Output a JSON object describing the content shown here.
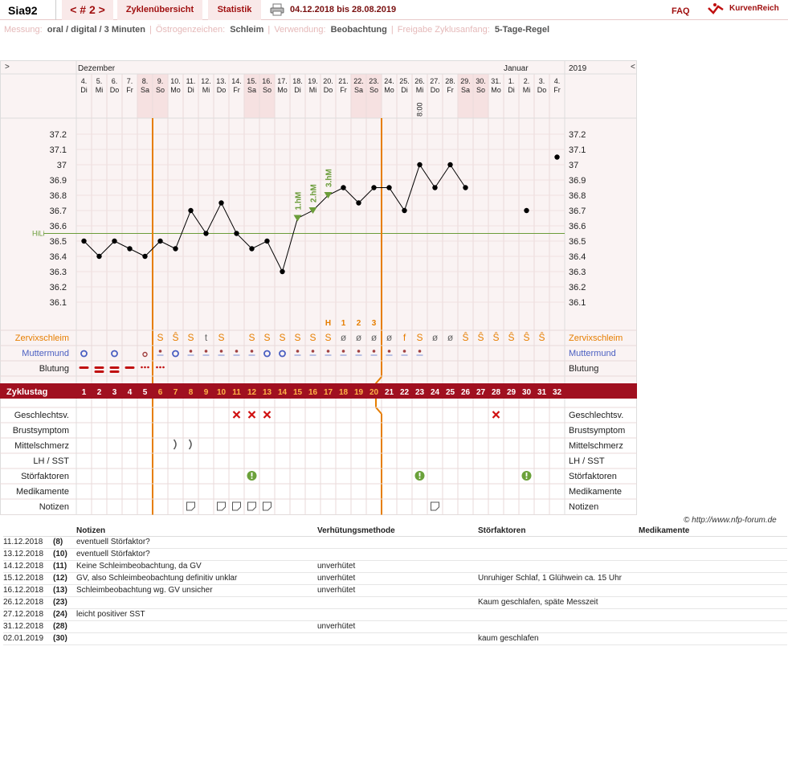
{
  "header": {
    "user": "Sia92",
    "cycle_nav": "< # 2 >",
    "tab_overview": "Zyklenübersicht",
    "tab_stats": "Statistik",
    "print_icon": "printer-icon",
    "date_range": "04.12.2018 bis 28.08.2019",
    "faq": "FAQ",
    "logo": "KurvenReich"
  },
  "settings": {
    "measure_label": "Messung:",
    "measure_value": "oral / digital / 3 Minuten",
    "estrogen_label": "Östrogenzeichen:",
    "estrogen_value": "Schleim",
    "usage_label": "Verwendung:",
    "usage_value": "Beobachtung",
    "release_label": "Freigabe Zyklusanfang:",
    "release_value": "5-Tage-Regel"
  },
  "colors": {
    "accent": "#a01010",
    "orange": "#e67e00",
    "hili": "#6b9c3a",
    "weekend": "#f6e1e1"
  },
  "chart_data": {
    "type": "line",
    "title": "",
    "nav_left": ">",
    "nav_right": "<",
    "month_left": "Dezember",
    "month_right": "Januar",
    "year": "2019",
    "days": [
      "4.",
      "5.",
      "6.",
      "7.",
      "8.",
      "9.",
      "10.",
      "11.",
      "12.",
      "13.",
      "14.",
      "15.",
      "16.",
      "17.",
      "18.",
      "19.",
      "20.",
      "21.",
      "22.",
      "23.",
      "24.",
      "25.",
      "26.",
      "27.",
      "28.",
      "29.",
      "30.",
      "31.",
      "1.",
      "2.",
      "3.",
      "4."
    ],
    "weekdays": [
      "Di",
      "Mi",
      "Do",
      "Fr",
      "Sa",
      "So",
      "Mo",
      "Di",
      "Mi",
      "Do",
      "Fr",
      "Sa",
      "So",
      "Mo",
      "Di",
      "Mi",
      "Do",
      "Fr",
      "Sa",
      "So",
      "Mo",
      "Di",
      "Mi",
      "Do",
      "Fr",
      "Sa",
      "So",
      "Mo",
      "Di",
      "Mi",
      "Do",
      "Fr"
    ],
    "weekend_idx": [
      4,
      5,
      11,
      12,
      18,
      19,
      25,
      26
    ],
    "time_note": {
      "idx": 22,
      "text": "8:00"
    },
    "y_ticks": [
      "37.2",
      "37.1",
      "37",
      "36.9",
      "36.8",
      "36.7",
      "36.6",
      "36.5",
      "36.4",
      "36.3",
      "36.2",
      "36.1"
    ],
    "ylim": [
      36.0,
      37.3
    ],
    "hili": 36.55,
    "hili_label": "HiLi",
    "temps": [
      36.5,
      36.4,
      36.5,
      36.45,
      36.4,
      36.5,
      36.45,
      36.7,
      36.55,
      36.75,
      36.55,
      36.45,
      36.5,
      36.3,
      36.65,
      36.7,
      36.8,
      36.85,
      36.75,
      36.85,
      36.85,
      36.7,
      37.0,
      36.85,
      37.0,
      36.85,
      null,
      null,
      null,
      36.7,
      null,
      37.05
    ],
    "hm_marks": [
      {
        "idx": 14,
        "label": "1.hM"
      },
      {
        "idx": 15,
        "label": "2.hM"
      },
      {
        "idx": 16,
        "label": "3.hM"
      }
    ],
    "mucus_marks": [
      {
        "idx": 16,
        "label": "H"
      },
      {
        "idx": 17,
        "label": "1"
      },
      {
        "idx": 18,
        "label": "2"
      },
      {
        "idx": 19,
        "label": "3"
      }
    ],
    "cervix_mucus": [
      "",
      "",
      "",
      "",
      "",
      "S",
      "Ŝ",
      "S",
      "t",
      "S",
      "",
      "S",
      "S",
      "S",
      "S",
      "S",
      "S",
      "ø",
      "ø",
      "ø",
      "ø",
      "f",
      "S",
      "ø",
      "ø",
      "Ŝ",
      "Ŝ",
      "Ŝ",
      "Ŝ",
      "Ŝ",
      "Ŝ",
      ""
    ],
    "cycle_days": [
      "1",
      "2",
      "3",
      "4",
      "5",
      "6",
      "7",
      "8",
      "9",
      "10",
      "11",
      "12",
      "13",
      "14",
      "15",
      "16",
      "17",
      "18",
      "19",
      "20",
      "21",
      "22",
      "23",
      "24",
      "25",
      "26",
      "27",
      "28",
      "29",
      "30",
      "31",
      "32"
    ],
    "bleeding_idx": {
      "heavy": [
        0,
        1,
        2,
        3
      ],
      "spot": [
        4,
        5
      ]
    },
    "cervix_open_idx": [
      0,
      2,
      6,
      12,
      13
    ],
    "cervix_small_idx": [
      4
    ],
    "cervix_dot_idx": [
      5,
      7,
      8,
      9,
      10,
      11,
      14,
      15,
      16,
      17,
      18,
      19,
      20,
      21,
      22
    ],
    "sex_idx": [
      10,
      11,
      12,
      27
    ],
    "breast_idx": [
      6,
      7
    ],
    "disturb_idx": [
      11,
      22,
      29
    ],
    "note_idx": [
      7,
      9,
      10,
      11,
      12,
      23
    ],
    "row_labels": {
      "zervix": "Zervixschleim",
      "mutter": "Muttermund",
      "blutung": "Blutung",
      "zyklustag": "Zyklustag",
      "sex": "Geschlechtsv.",
      "brust": "Brustsymptom",
      "mittel": "Mittelschmerz",
      "lh": "LH / SST",
      "stoer": "Störfaktoren",
      "med": "Medikamente",
      "notiz": "Notizen"
    }
  },
  "copyright": "© http://www.nfp-forum.de",
  "notes": {
    "headers": [
      "Notizen",
      "Verhütungsmethode",
      "Störfaktoren",
      "Medikamente"
    ],
    "rows": [
      {
        "date": "11.12.2018",
        "day": "(8)",
        "note": "eventuell Störfaktor?",
        "method": "",
        "disturb": "",
        "med": ""
      },
      {
        "date": "13.12.2018",
        "day": "(10)",
        "note": "eventuell Störfaktor?",
        "method": "",
        "disturb": "",
        "med": ""
      },
      {
        "date": "14.12.2018",
        "day": "(11)",
        "note": "Keine Schleimbeobachtung, da GV",
        "method": "unverhütet",
        "disturb": "",
        "med": ""
      },
      {
        "date": "15.12.2018",
        "day": "(12)",
        "note": "GV, also Schleimbeobachtung definitiv unklar",
        "method": "unverhütet",
        "disturb": "Unruhiger Schlaf, 1 Glühwein ca. 15 Uhr",
        "med": ""
      },
      {
        "date": "16.12.2018",
        "day": "(13)",
        "note": "Schleimbeobachtung wg. GV unsicher",
        "method": "unverhütet",
        "disturb": "",
        "med": ""
      },
      {
        "date": "26.12.2018",
        "day": "(23)",
        "note": "",
        "method": "",
        "disturb": "Kaum geschlafen, späte Messzeit",
        "med": ""
      },
      {
        "date": "27.12.2018",
        "day": "(24)",
        "note": "leicht positiver SST",
        "method": "",
        "disturb": "",
        "med": ""
      },
      {
        "date": "31.12.2018",
        "day": "(28)",
        "note": "",
        "method": "unverhütet",
        "disturb": "",
        "med": ""
      },
      {
        "date": "02.01.2019",
        "day": "(30)",
        "note": "",
        "method": "",
        "disturb": "kaum geschlafen",
        "med": ""
      }
    ]
  }
}
